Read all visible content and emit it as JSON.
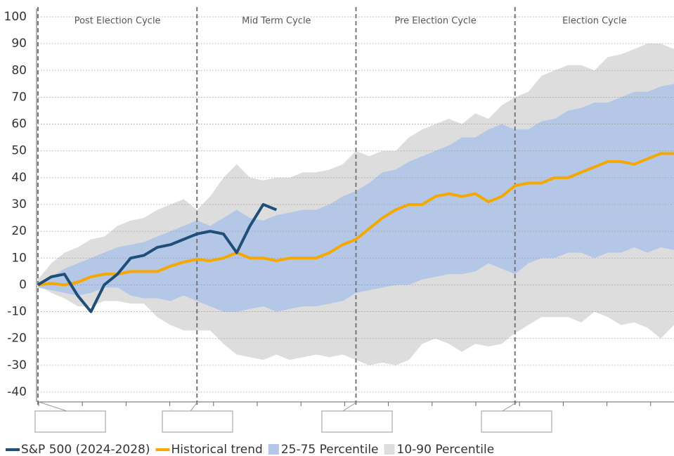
{
  "chart_data": {
    "type": "line",
    "cycles": [
      "Post Election Cycle",
      "Mid Term Cycle",
      "Pre Election Cycle",
      "Election Cycle"
    ],
    "ylim": [
      -40,
      100
    ],
    "yticks": [
      -40,
      -30,
      -20,
      -10,
      0,
      10,
      20,
      30,
      40,
      50,
      60,
      70,
      80,
      90,
      100
    ],
    "grid": true,
    "legend": "bottom",
    "bands": [
      {
        "name": "10-90 Percentile",
        "color": "#dddddd",
        "lower": [
          0,
          -3,
          -5,
          -8,
          -8,
          -6,
          -6,
          -7,
          -7,
          -12,
          -15,
          -17,
          -17,
          -17,
          -22,
          -26,
          -27,
          -28,
          -26,
          -28,
          -27,
          -26,
          -27,
          -26,
          -28,
          -30,
          -29,
          -30,
          -28,
          -22,
          -20,
          -22,
          -25,
          -22,
          -23,
          -22,
          -18,
          -15,
          -12,
          -12,
          -12,
          -14,
          -10,
          -12,
          -15,
          -14,
          -16,
          -20,
          -15
        ],
        "upper": [
          2,
          8,
          12,
          14,
          17,
          18,
          22,
          24,
          25,
          28,
          30,
          32,
          28,
          33,
          40,
          45,
          40,
          39,
          40,
          40,
          42,
          42,
          43,
          45,
          50,
          48,
          50,
          50,
          55,
          58,
          60,
          62,
          60,
          64,
          62,
          67,
          70,
          72,
          78,
          80,
          82,
          82,
          80,
          85,
          86,
          88,
          90,
          90,
          88
        ]
      },
      {
        "name": "25-75 Percentile",
        "color": "#b4c7e7",
        "lower": [
          -1,
          -2,
          -3,
          -4,
          -3,
          -1,
          -1,
          -4,
          -5,
          -5,
          -6,
          -4,
          -6,
          -8,
          -10,
          -10,
          -9,
          -8,
          -10,
          -9,
          -8,
          -8,
          -7,
          -6,
          -3,
          -2,
          -1,
          0,
          0,
          2,
          3,
          4,
          4,
          5,
          8,
          6,
          4,
          8,
          10,
          10,
          12,
          12,
          10,
          12,
          12,
          14,
          12,
          14,
          13
        ],
        "upper": [
          1,
          3,
          6,
          8,
          10,
          12,
          14,
          15,
          16,
          18,
          20,
          22,
          24,
          22,
          25,
          28,
          25,
          24,
          26,
          27,
          28,
          28,
          30,
          33,
          35,
          38,
          42,
          43,
          46,
          48,
          50,
          52,
          55,
          55,
          58,
          60,
          58,
          58,
          61,
          62,
          65,
          66,
          68,
          68,
          70,
          72,
          72,
          74,
          75
        ]
      }
    ],
    "series": [
      {
        "name": "S&P 500 (2024-2028)",
        "color": "#1f4e79",
        "values": [
          0,
          3,
          4,
          -4,
          -10,
          0,
          4,
          10,
          11,
          14,
          15,
          17,
          19,
          20,
          19,
          12,
          22,
          30,
          28,
          null,
          null,
          null,
          null,
          null,
          null,
          null,
          null,
          null,
          null,
          null,
          null,
          null,
          null,
          null,
          null,
          null,
          null,
          null,
          null,
          null,
          null,
          null,
          null,
          null,
          null,
          null,
          null,
          null,
          null
        ]
      },
      {
        "name": "Historical trend",
        "color": "#f5a800",
        "values": [
          0,
          0.5,
          0,
          1,
          3,
          4,
          4,
          5,
          5,
          5,
          7,
          8.5,
          9.5,
          9,
          10,
          12,
          10,
          10,
          9,
          10,
          10,
          10,
          12,
          15,
          17,
          21,
          25,
          28,
          30,
          30,
          33,
          34,
          33,
          34,
          31,
          33,
          37,
          38,
          38,
          40,
          40,
          42,
          44,
          46,
          46,
          45,
          47,
          49,
          49
        ]
      }
    ]
  }
}
